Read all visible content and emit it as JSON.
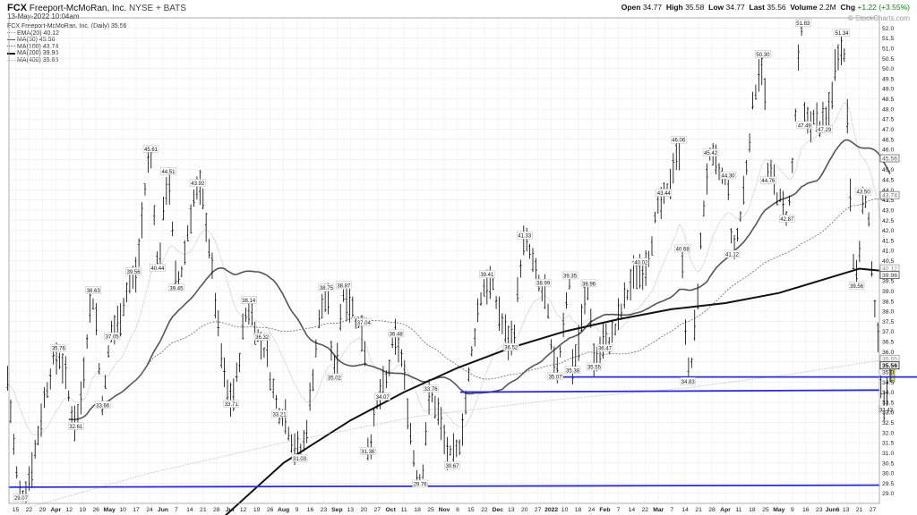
{
  "header": {
    "symbol": "FCX",
    "company": "Freeport-McMoRan, Inc.",
    "exchange": "NYSE + BATS",
    "timestamp": "13-May-2022 10:04am",
    "brand": "© StockCharts.com",
    "quote": {
      "open_label": "Open",
      "open": "34.77",
      "high_label": "High",
      "high": "35.58",
      "low_label": "Low",
      "low": "34.77",
      "last_label": "Last",
      "last": "35.56",
      "volume_label": "Volume",
      "volume": "2.2M",
      "chg_label": "Chg",
      "chg": "+1.22 (+3.55%)"
    }
  },
  "legend": [
    {
      "label": "FCX Freeport-McMoRan, Inc. (Daily) 35.56",
      "style": "none"
    },
    {
      "label": "EMA(20) 40.12",
      "style": "ema20"
    },
    {
      "label": "MA(50) 45.56",
      "style": "ma50"
    },
    {
      "label": "MA(100) 43.74",
      "style": "ma100"
    },
    {
      "label": "MA(200) 39.96",
      "style": "ma200"
    },
    {
      "label": "MA(400) 35.65",
      "style": "ma400"
    }
  ],
  "chart_data": {
    "type": "bar",
    "ylim": [
      28.5,
      52.5
    ],
    "y_ticks": [
      "29.0",
      "29.5",
      "30.0",
      "30.5",
      "31.0",
      "31.5",
      "32.0",
      "32.5",
      "33.0",
      "33.5",
      "34.0",
      "34.5",
      "35.0",
      "35.5",
      "36.0",
      "36.5",
      "37.0",
      "37.5",
      "38.0",
      "38.5",
      "39.0",
      "39.5",
      "40.0",
      "40.5",
      "41.0",
      "41.5",
      "42.0",
      "42.5",
      "43.0",
      "43.5",
      "44.0",
      "44.5",
      "45.0",
      "45.5",
      "46.0",
      "46.5",
      "47.0",
      "47.5",
      "48.0",
      "48.5",
      "49.0",
      "49.5",
      "50.0",
      "50.5",
      "51.0",
      "51.5",
      "52.0"
    ],
    "x_ticks": [
      "15",
      "22",
      "29",
      "Apr",
      "12",
      "19",
      "26",
      "May",
      "10",
      "17",
      "24",
      "Jun",
      "7",
      "14",
      "21",
      "28",
      "Jul",
      "12",
      "19",
      "26",
      "Aug",
      "9",
      "16",
      "23",
      "Sep",
      "13",
      "20",
      "27",
      "Oct",
      "11",
      "18",
      "25",
      "Nov",
      "8",
      "15",
      "22",
      "Dec",
      "13",
      "20",
      "27",
      "2022",
      "10",
      "18",
      "24",
      "Feb",
      "7",
      "14",
      "22",
      "Mar",
      "7",
      "14",
      "21",
      "28",
      "Apr",
      "11",
      "18",
      "25",
      "May",
      "9",
      "16",
      "23",
      "Jun6",
      "13",
      "21",
      "27"
    ],
    "right_labels": [
      {
        "value": 45.56,
        "text": "45.56",
        "color": "#555555"
      },
      {
        "value": 43.74,
        "text": "43.74",
        "color": "#666666"
      },
      {
        "value": 40.12,
        "text": "40.12",
        "color": "#888888"
      },
      {
        "value": 39.96,
        "text": "39.96",
        "color": "#333333"
      },
      {
        "value": 35.65,
        "text": "35.65",
        "color": "#888888"
      },
      {
        "value": 35.56,
        "text": "35.56",
        "color": "#000000"
      }
    ],
    "annotations": [
      {
        "x": 0.4,
        "y": 29.07,
        "text": "29.07",
        "pos": "below"
      },
      {
        "x": 4.5,
        "y": 32.61,
        "text": "32.61",
        "pos": "below"
      },
      {
        "x": 6.5,
        "y": 33.66,
        "text": "33.66",
        "pos": "below"
      },
      {
        "x": 3.2,
        "y": 35.76,
        "text": "35.76",
        "pos": "above"
      },
      {
        "x": 5.8,
        "y": 38.63,
        "text": "38.63",
        "pos": "above"
      },
      {
        "x": 7.2,
        "y": 37.05,
        "text": "37.05",
        "pos": "below"
      },
      {
        "x": 8.8,
        "y": 39.56,
        "text": "39.56",
        "pos": "above"
      },
      {
        "x": 10.1,
        "y": 45.61,
        "text": "45.61",
        "pos": "above"
      },
      {
        "x": 11.4,
        "y": 44.51,
        "text": "44.51",
        "pos": "above"
      },
      {
        "x": 10.6,
        "y": 40.44,
        "text": "40.44",
        "pos": "below"
      },
      {
        "x": 12.0,
        "y": 39.45,
        "text": "39.45",
        "pos": "below"
      },
      {
        "x": 13.6,
        "y": 43.92,
        "text": "43.92",
        "pos": "above"
      },
      {
        "x": 17.4,
        "y": 38.14,
        "text": "38.14",
        "pos": "above"
      },
      {
        "x": 16.1,
        "y": 33.71,
        "text": "33.71",
        "pos": "below"
      },
      {
        "x": 18.4,
        "y": 36.32,
        "text": "36.32",
        "pos": "above"
      },
      {
        "x": 19.7,
        "y": 33.21,
        "text": "33.21",
        "pos": "below"
      },
      {
        "x": 21.2,
        "y": 31.03,
        "text": "31.03",
        "pos": "below"
      },
      {
        "x": 23.2,
        "y": 38.75,
        "text": "38.75",
        "pos": "above"
      },
      {
        "x": 24.5,
        "y": 38.87,
        "text": "38.87",
        "pos": "above"
      },
      {
        "x": 23.8,
        "y": 35.02,
        "text": "35.02",
        "pos": "below"
      },
      {
        "x": 26.0,
        "y": 37.04,
        "text": "37.04",
        "pos": "above"
      },
      {
        "x": 26.3,
        "y": 31.38,
        "text": "31.38",
        "pos": "below"
      },
      {
        "x": 28.4,
        "y": 36.48,
        "text": "36.48",
        "pos": "above"
      },
      {
        "x": 27.4,
        "y": 34.07,
        "text": "34.07",
        "pos": "below"
      },
      {
        "x": 31.0,
        "y": 33.76,
        "text": "33.76",
        "pos": "above"
      },
      {
        "x": 30.2,
        "y": 29.76,
        "text": "29.76",
        "pos": "below"
      },
      {
        "x": 32.6,
        "y": 30.67,
        "text": "30.67",
        "pos": "below"
      },
      {
        "x": 35.2,
        "y": 39.41,
        "text": "39.41",
        "pos": "above"
      },
      {
        "x": 38.0,
        "y": 41.33,
        "text": "41.33",
        "pos": "above"
      },
      {
        "x": 37.0,
        "y": 36.52,
        "text": "36.52",
        "pos": "below"
      },
      {
        "x": 39.4,
        "y": 38.99,
        "text": "38.99",
        "pos": "above"
      },
      {
        "x": 41.4,
        "y": 39.35,
        "text": "39.35",
        "pos": "above"
      },
      {
        "x": 42.8,
        "y": 38.96,
        "text": "38.96",
        "pos": "above"
      },
      {
        "x": 40.3,
        "y": 35.07,
        "text": "35.07",
        "pos": "below"
      },
      {
        "x": 41.6,
        "y": 35.38,
        "text": "35.38",
        "pos": "below"
      },
      {
        "x": 43.2,
        "y": 35.55,
        "text": "35.55",
        "pos": "below"
      },
      {
        "x": 44.0,
        "y": 36.47,
        "text": "36.47",
        "pos": "below"
      },
      {
        "x": 46.7,
        "y": 40.02,
        "text": "40.02",
        "pos": "above"
      },
      {
        "x": 48.4,
        "y": 43.44,
        "text": "43.44",
        "pos": "above"
      },
      {
        "x": 49.5,
        "y": 46.06,
        "text": "46.06",
        "pos": "above"
      },
      {
        "x": 49.8,
        "y": 40.68,
        "text": "40.68",
        "pos": "above"
      },
      {
        "x": 50.2,
        "y": 34.83,
        "text": "34.83",
        "pos": "below"
      },
      {
        "x": 51.9,
        "y": 45.42,
        "text": "45.42",
        "pos": "above"
      },
      {
        "x": 53.2,
        "y": 44.3,
        "text": "44.30",
        "pos": "above"
      },
      {
        "x": 53.5,
        "y": 41.12,
        "text": "41.12",
        "pos": "below"
      },
      {
        "x": 55.8,
        "y": 50.3,
        "text": "50.30",
        "pos": "above"
      },
      {
        "x": 56.2,
        "y": 44.76,
        "text": "44.76",
        "pos": "below"
      },
      {
        "x": 57.6,
        "y": 42.87,
        "text": "42.87",
        "pos": "below"
      },
      {
        "x": 58.8,
        "y": 51.83,
        "text": "51.83",
        "pos": "above"
      },
      {
        "x": 58.9,
        "y": 47.49,
        "text": "47.49",
        "pos": "below"
      },
      {
        "x": 60.4,
        "y": 47.29,
        "text": "47.29",
        "pos": "below"
      },
      {
        "x": 61.7,
        "y": 51.34,
        "text": "51.34",
        "pos": "above"
      },
      {
        "x": 63.3,
        "y": 43.5,
        "text": "43.50",
        "pos": "above"
      },
      {
        "x": 62.8,
        "y": 39.56,
        "text": "39.56",
        "pos": "below"
      },
      {
        "x": 65.0,
        "y": 33.43,
        "text": "33.43",
        "pos": "below"
      }
    ]
  }
}
